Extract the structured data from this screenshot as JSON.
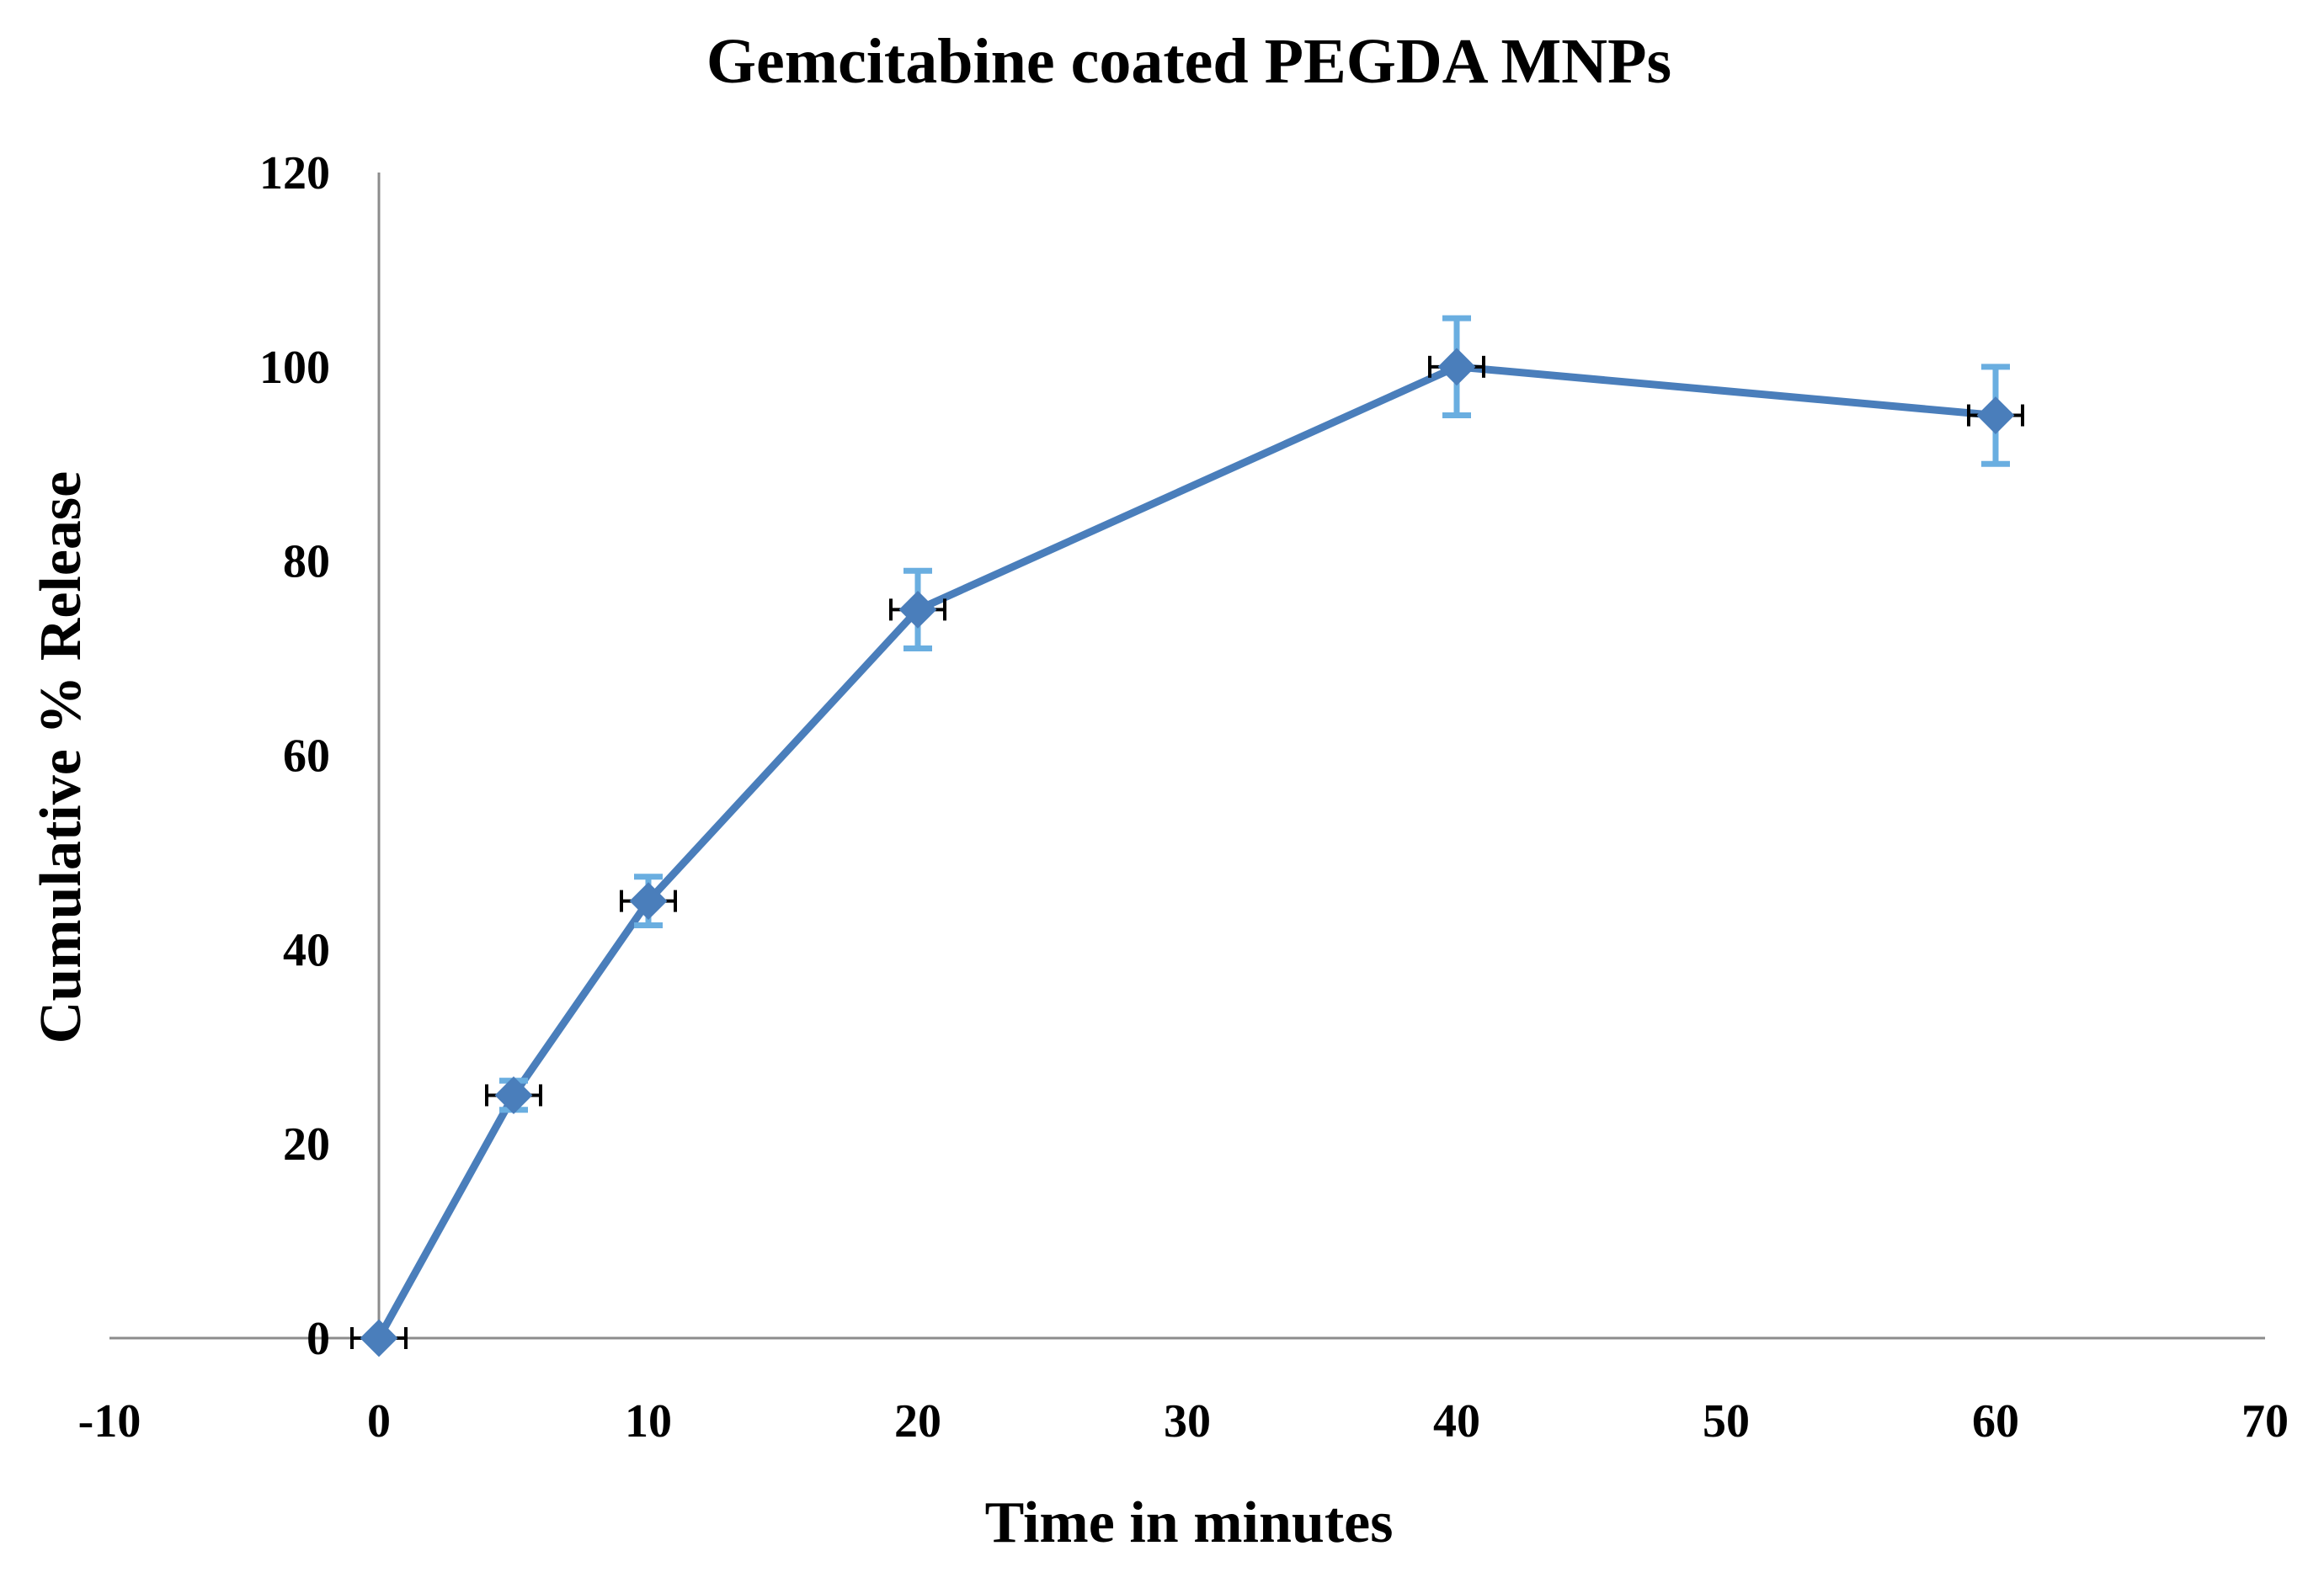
{
  "chart_data": {
    "type": "line",
    "title": "Gemcitabine coated PEGDA MNPs",
    "xlabel": "Time in minutes",
    "ylabel": "Cumulative % Release",
    "xlim": [
      -10,
      70
    ],
    "ylim": [
      0,
      120
    ],
    "xticks": [
      -10,
      0,
      10,
      20,
      30,
      40,
      50,
      60,
      70
    ],
    "yticks": [
      0,
      20,
      40,
      60,
      80,
      100,
      120
    ],
    "grid": false,
    "legend": "none",
    "series": [
      {
        "name": "Gemcitabine coated PEGDA MNPs",
        "color": "#4a7ebb",
        "error_color": "#6aaee0",
        "x": [
          0,
          5,
          10,
          20,
          40,
          60
        ],
        "y": [
          0,
          25,
          45,
          75,
          100,
          95
        ],
        "y_error": [
          0,
          1.5,
          2.5,
          4,
          5,
          5
        ],
        "x_error": [
          1,
          1,
          1,
          1,
          1,
          1
        ]
      }
    ]
  }
}
